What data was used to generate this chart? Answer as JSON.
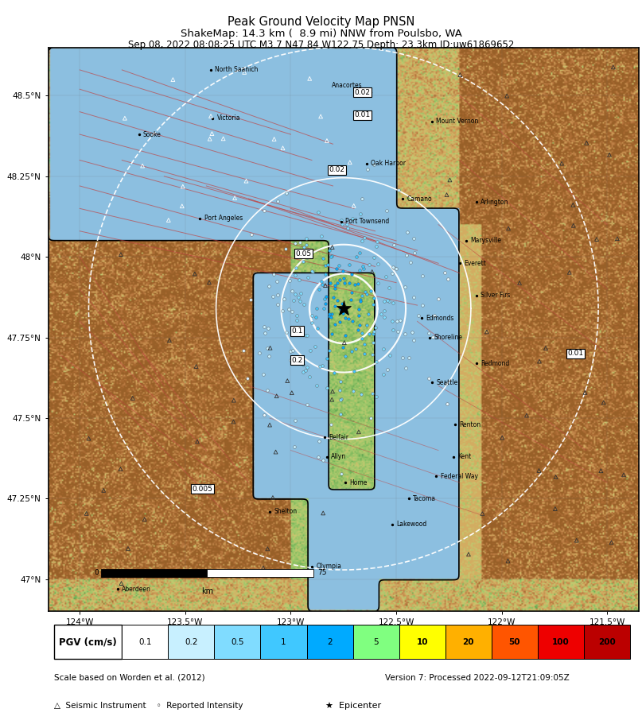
{
  "title_line1": "Peak Ground Velocity Map PNSN",
  "title_line2": "ShakeMap: 14.3 km (  8.9 mi) NNW from Poulsbo, WA",
  "title_line3": "Sep 08, 2022 08:08:25 UTC M3.7 N47.84 W122.75 Depth: 23.3km ID:uw61869652",
  "colorbar_label": "PGV (cm/s)",
  "colorbar_values": [
    "0.1",
    "0.2",
    "0.5",
    "1",
    "2",
    "5",
    "10",
    "20",
    "50",
    "100",
    "200"
  ],
  "footer_left1": "Scale based on Worden et al. (2012)",
  "footer_left2": "△  Seismic Instrument    ◦  Reported Intensity",
  "footer_right": "Version 7: Processed 2022-09-12T21:09:05Z",
  "footer_epicenter": "★  Epicenter",
  "fig_bg_color": "#FFFFFF",
  "axis_xlabels": [
    "124°W",
    "123.5°W",
    "123°W",
    "122.5°W",
    "122°W",
    "121.5°W"
  ],
  "axis_ylabels": [
    "47°N",
    "47.25°N",
    "47.5°N",
    "47.75°N",
    "48°N",
    "48.25°N",
    "48.5°N"
  ],
  "xlim": [
    -124.15,
    -121.35
  ],
  "ylim": [
    46.9,
    48.65
  ],
  "xticks": [
    -124.0,
    -123.5,
    -123.0,
    -122.5,
    -122.0,
    -121.5
  ],
  "yticks": [
    47.0,
    47.25,
    47.5,
    47.75,
    48.0,
    48.25,
    48.5
  ],
  "epi_lon": -122.75,
  "epi_lat": 47.84,
  "scale_bar_km": 75,
  "scale_bar_lon": -123.9,
  "scale_bar_lat": 47.02,
  "city_labels": [
    {
      "name": "North Saanich",
      "lon": -123.38,
      "lat": 48.58,
      "dot": true
    },
    {
      "name": "Victoria",
      "lon": -123.37,
      "lat": 48.43,
      "dot": true
    },
    {
      "name": "Sooke",
      "lon": -123.72,
      "lat": 48.38,
      "dot": true
    },
    {
      "name": "Port Angeles",
      "lon": -123.43,
      "lat": 48.12,
      "dot": true
    },
    {
      "name": "Oak Harbor",
      "lon": -122.64,
      "lat": 48.29,
      "dot": true
    },
    {
      "name": "Camano",
      "lon": -122.47,
      "lat": 48.18,
      "dot": true
    },
    {
      "name": "Port Townsend",
      "lon": -122.76,
      "lat": 48.11,
      "dot": true
    },
    {
      "name": "Marysville",
      "lon": -122.17,
      "lat": 48.05,
      "dot": true
    },
    {
      "name": "Everett",
      "lon": -122.2,
      "lat": 47.98,
      "dot": true
    },
    {
      "name": "Silver Firs",
      "lon": -122.12,
      "lat": 47.88,
      "dot": true
    },
    {
      "name": "Edmonds",
      "lon": -122.38,
      "lat": 47.81,
      "dot": true
    },
    {
      "name": "Shoreline",
      "lon": -122.34,
      "lat": 47.75,
      "dot": true
    },
    {
      "name": "Seattle",
      "lon": -122.33,
      "lat": 47.61,
      "dot": true
    },
    {
      "name": "Redmond",
      "lon": -122.12,
      "lat": 47.67,
      "dot": true
    },
    {
      "name": "Renton",
      "lon": -122.22,
      "lat": 47.48,
      "dot": true
    },
    {
      "name": "Kent",
      "lon": -122.23,
      "lat": 47.38,
      "dot": true
    },
    {
      "name": "Federal Way",
      "lon": -122.31,
      "lat": 47.32,
      "dot": true
    },
    {
      "name": "Tacoma",
      "lon": -122.44,
      "lat": 47.25,
      "dot": true
    },
    {
      "name": "Lakewood",
      "lon": -122.52,
      "lat": 47.17,
      "dot": true
    },
    {
      "name": "Belfair",
      "lon": -122.84,
      "lat": 47.44,
      "dot": true
    },
    {
      "name": "Allyn",
      "lon": -122.83,
      "lat": 47.38,
      "dot": true
    },
    {
      "name": "Home",
      "lon": -122.74,
      "lat": 47.3,
      "dot": true
    },
    {
      "name": "Shelton",
      "lon": -123.1,
      "lat": 47.21,
      "dot": true
    },
    {
      "name": "Olympia",
      "lon": -122.9,
      "lat": 47.04,
      "dot": true
    },
    {
      "name": "Arlington",
      "lon": -122.12,
      "lat": 48.17,
      "dot": true
    },
    {
      "name": "Mount Vernon",
      "lon": -122.33,
      "lat": 48.42,
      "dot": true
    },
    {
      "name": "Aberdeen",
      "lon": -123.82,
      "lat": 46.97,
      "dot": true
    }
  ],
  "anacortes_label": {
    "name": "Anacortes",
    "lon": -122.62,
    "lat": 48.51,
    "dot": true
  },
  "contour_boxes": [
    {
      "val": "0.02",
      "lon": -122.66,
      "lat": 48.51
    },
    {
      "val": "0.01",
      "lon": -122.66,
      "lat": 48.44
    },
    {
      "val": "0.02",
      "lon": -122.78,
      "lat": 48.27
    },
    {
      "val": "0.05",
      "lon": -122.94,
      "lat": 48.01
    },
    {
      "val": "0.1",
      "lon": -122.97,
      "lat": 47.77
    },
    {
      "val": "0.2",
      "lon": -122.97,
      "lat": 47.68
    },
    {
      "val": "0.005",
      "lon": -123.42,
      "lat": 47.28
    },
    {
      "val": "0.01",
      "lon": -121.65,
      "lat": 47.7
    }
  ],
  "colorbar_cell_colors": [
    "#FFFFFF",
    "#C8F0FF",
    "#80DCFF",
    "#40C8FF",
    "#00AAFF",
    "#80FF80",
    "#FFFF00",
    "#FFB000",
    "#FF5500",
    "#EE0000",
    "#BB0000"
  ],
  "colorbar_text_bold_from": 6
}
